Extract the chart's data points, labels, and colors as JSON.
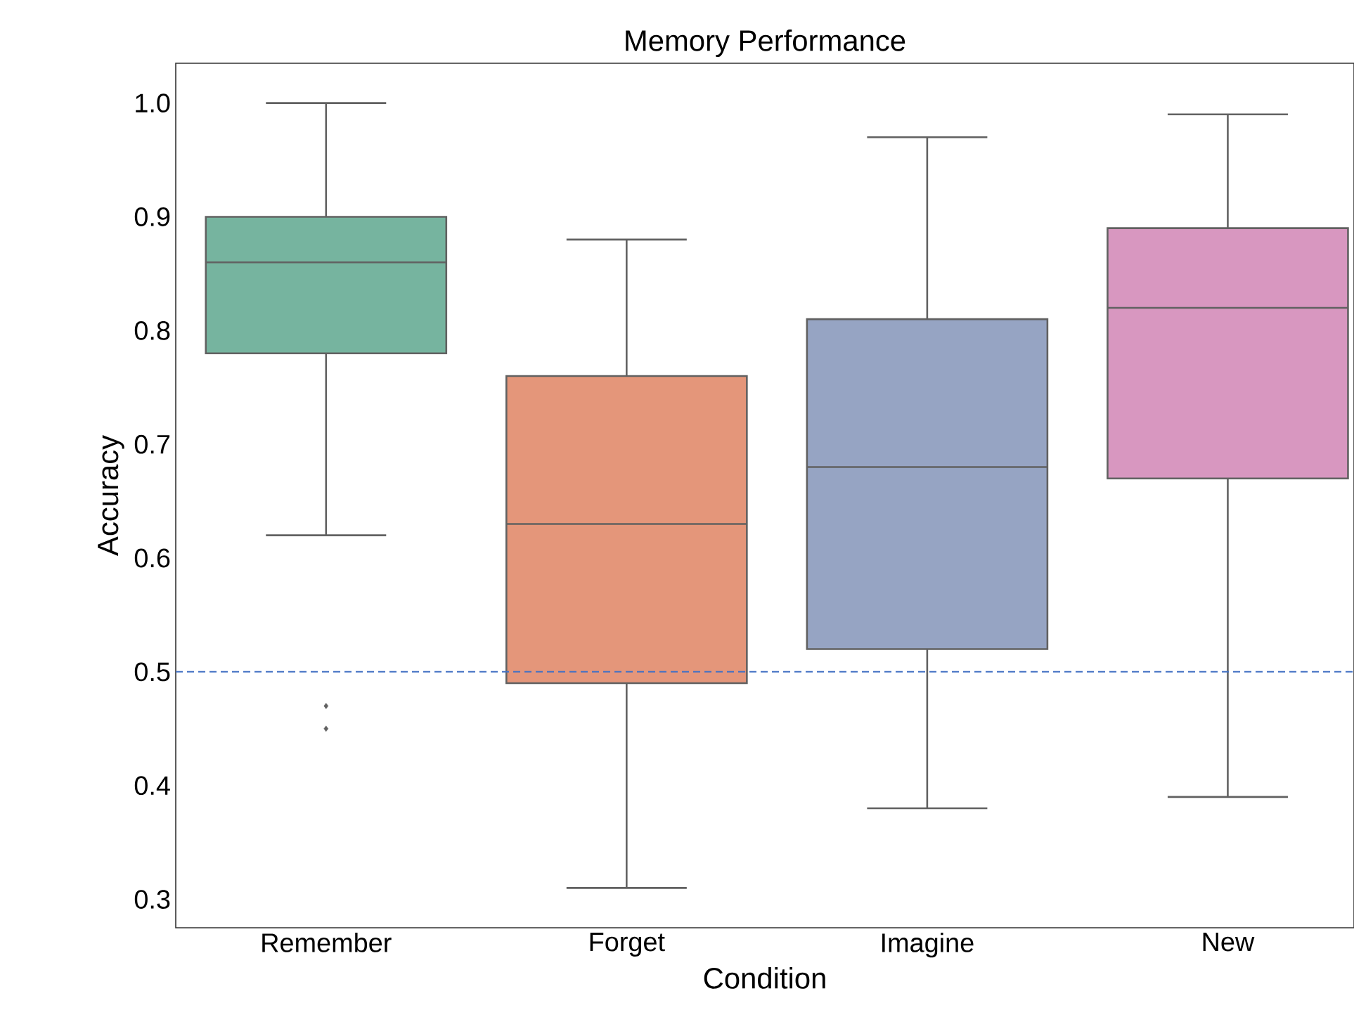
{
  "chart_data": {
    "type": "box",
    "title": "Memory Performance",
    "xlabel": "Condition",
    "ylabel": "Accuracy",
    "categories": [
      "Remember",
      "Forget",
      "Imagine",
      "New"
    ],
    "colors": [
      "#76b49f",
      "#e4967a",
      "#96a4c3",
      "#d897c0"
    ],
    "boxes": [
      {
        "low": 0.62,
        "q1": 0.78,
        "median": 0.86,
        "q3": 0.9,
        "high": 1.0,
        "outliers": [
          0.47,
          0.45
        ]
      },
      {
        "low": 0.31,
        "q1": 0.49,
        "median": 0.63,
        "q3": 0.76,
        "high": 0.88
      },
      {
        "low": 0.38,
        "q1": 0.52,
        "median": 0.68,
        "q3": 0.81,
        "high": 0.97
      },
      {
        "low": 0.39,
        "q1": 0.67,
        "median": 0.82,
        "q3": 0.89,
        "high": 0.99
      }
    ],
    "ylim": [
      0.275,
      1.035
    ],
    "yticks": [
      {
        "value": 0.3,
        "label": "0.3"
      },
      {
        "value": 0.4,
        "label": "0.4"
      },
      {
        "value": 0.5,
        "label": "0.5"
      },
      {
        "value": 0.6,
        "label": "0.6"
      },
      {
        "value": 0.7,
        "label": "0.7"
      },
      {
        "value": 0.8,
        "label": "0.8"
      },
      {
        "value": 0.9,
        "label": "0.9"
      },
      {
        "value": 1.0,
        "label": "1.0"
      }
    ],
    "ref_lines": [
      {
        "axis": "y",
        "value": 0.5,
        "color": "#4472c4",
        "line_style": "dashed"
      }
    ]
  }
}
